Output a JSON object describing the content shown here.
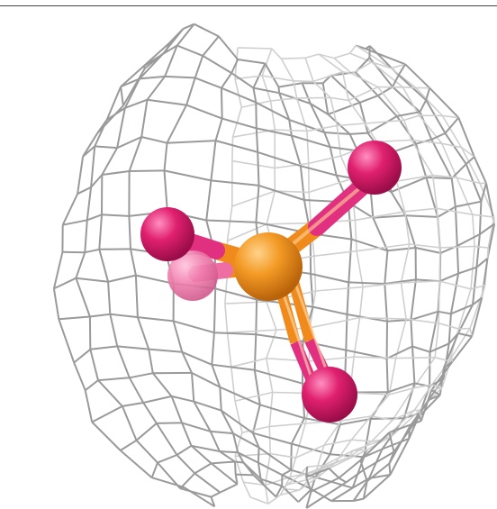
{
  "scene": {
    "background": "#ffffff",
    "mesh_color": "#9a9a9a",
    "mesh_color_light": "#cfcfcf",
    "phosphorus_color": "#f08a1c",
    "oxygen_color": "#e01f73",
    "bond_orange": "#f29a2e",
    "bond_magenta": "#e0307f"
  },
  "molecule": {
    "center_atom": "phosphorus",
    "ligand_atoms": [
      "oxygen",
      "oxygen",
      "oxygen",
      "oxygen"
    ]
  }
}
